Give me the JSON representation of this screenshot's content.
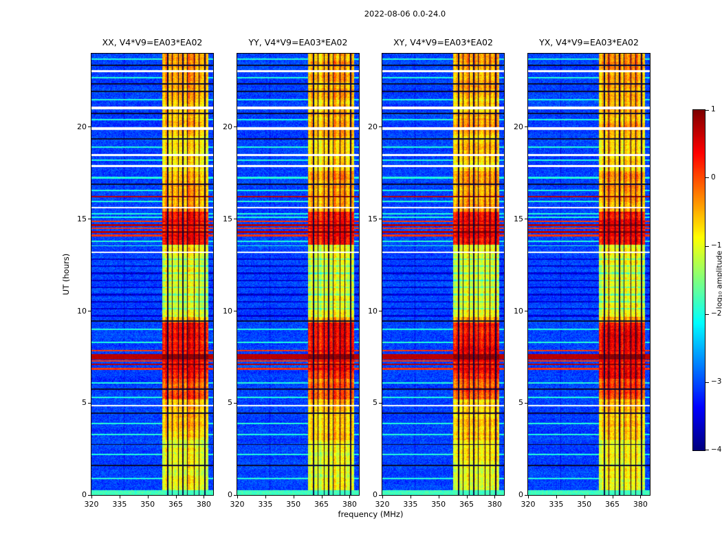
{
  "figure": {
    "title": "2022-08-06 0.0-24.0",
    "xlabel": "frequency (MHz)",
    "ylabel": "UT (hours)",
    "colorbar_label": "log₁₀ amplitude",
    "background_color": "#ffffff"
  },
  "chart_data": {
    "type": "heatmap",
    "title": "2022-08-06 0.0-24.0",
    "xlabel": "frequency (MHz)",
    "ylabel": "UT (hours)",
    "xlim": [
      320,
      385
    ],
    "ylim": [
      0,
      24
    ],
    "xticks": [
      320,
      335,
      350,
      365,
      380
    ],
    "yticks": [
      0,
      5,
      10,
      15,
      20
    ],
    "colormap": "jet",
    "colorbar": {
      "label": "log₁₀ amplitude",
      "ticks": [
        1,
        0,
        -1,
        -2,
        -3,
        -4
      ],
      "vmin": -4,
      "vmax": 1,
      "position": "right"
    },
    "panels": [
      {
        "label": "XX, V4*V9=EA03*EA02"
      },
      {
        "label": "YY, V4*V9=EA03*EA02"
      },
      {
        "label": "XY, V4*V9=EA03*EA02"
      },
      {
        "label": "YX, V4*V9=EA03*EA02"
      }
    ],
    "features": {
      "background_level": -3.05,
      "low_freq_faint_line_mhz": 337.5,
      "rfi_band": {
        "freq_start": 358.0,
        "freq_end": 382.5,
        "base_level": -1.55,
        "dark_lines_mhz": [
          360.8,
          363.2,
          366.5,
          368.9,
          371.2,
          374.8,
          377.5,
          380.6
        ]
      },
      "active_periods": [
        [
          0,
          3,
          0.35
        ],
        [
          3,
          5.2,
          0.5
        ],
        [
          5.2,
          6.3,
          0.8
        ],
        [
          6.3,
          9.4,
          1.0
        ],
        [
          9.4,
          9.8,
          0.55
        ],
        [
          9.8,
          13.6,
          0.3
        ],
        [
          13.6,
          15.4,
          1.0
        ],
        [
          15.4,
          17.6,
          0.6
        ],
        [
          17.6,
          19.5,
          0.45
        ],
        [
          19.5,
          21.5,
          0.55
        ],
        [
          21.5,
          24,
          0.6
        ]
      ],
      "stripe": {
        "range": [
          9.7,
          13.5
        ],
        "period": 0.385,
        "duty": 0.22
      },
      "row_events": [
        {
          "t": 0.12,
          "h": 0.28,
          "type": "cyanfull"
        },
        {
          "t": 0.9,
          "h": 0.07,
          "type": "cyan"
        },
        {
          "t": 1.6,
          "h": 0.07,
          "type": "black"
        },
        {
          "t": 2.2,
          "h": 0.08,
          "type": "cyan"
        },
        {
          "t": 2.75,
          "h": 0.07,
          "type": "black"
        },
        {
          "t": 3.3,
          "h": 0.09,
          "type": "cyan"
        },
        {
          "t": 3.9,
          "h": 0.07,
          "type": "cyan"
        },
        {
          "t": 4.45,
          "h": 0.07,
          "type": "black"
        },
        {
          "t": 4.86,
          "h": 0.09,
          "type": "white"
        },
        {
          "t": 5.3,
          "h": 0.08,
          "type": "cyan"
        },
        {
          "t": 5.75,
          "h": 0.07,
          "type": "black"
        },
        {
          "t": 6.1,
          "h": 0.07,
          "type": "cyan"
        },
        {
          "t": 6.85,
          "h": 0.1,
          "type": "red"
        },
        {
          "t": 7.1,
          "h": 0.1,
          "type": "darkred"
        },
        {
          "t": 7.28,
          "h": 0.08,
          "type": "red"
        },
        {
          "t": 7.5,
          "h": 0.3,
          "type": "darkred"
        },
        {
          "t": 7.85,
          "h": 0.1,
          "type": "red"
        },
        {
          "t": 8.3,
          "h": 0.07,
          "type": "cyan"
        },
        {
          "t": 9.0,
          "h": 0.08,
          "type": "cyan"
        },
        {
          "t": 9.45,
          "h": 0.07,
          "type": "black"
        },
        {
          "t": 13.2,
          "h": 0.09,
          "type": "white"
        },
        {
          "t": 13.55,
          "h": 0.07,
          "type": "cyan"
        },
        {
          "t": 13.8,
          "h": 0.08,
          "type": "cyan"
        },
        {
          "t": 14.1,
          "h": 0.1,
          "type": "red"
        },
        {
          "t": 14.3,
          "h": 0.14,
          "type": "darkred"
        },
        {
          "t": 14.5,
          "h": 0.08,
          "type": "red"
        },
        {
          "t": 14.68,
          "h": 0.13,
          "type": "darkred"
        },
        {
          "t": 14.88,
          "h": 0.1,
          "type": "red"
        },
        {
          "t": 15.1,
          "h": 0.07,
          "type": "cyan"
        },
        {
          "t": 15.3,
          "h": 0.07,
          "type": "cyan"
        },
        {
          "t": 15.62,
          "h": 0.09,
          "type": "white"
        },
        {
          "t": 15.95,
          "h": 0.07,
          "type": "cyan"
        },
        {
          "t": 16.22,
          "h": 0.1,
          "type": "darkred"
        },
        {
          "t": 16.55,
          "h": 0.07,
          "type": "cyan"
        },
        {
          "t": 16.9,
          "h": 0.07,
          "type": "black"
        },
        {
          "t": 17.25,
          "h": 0.08,
          "type": "cyan"
        },
        {
          "t": 17.88,
          "h": 0.1,
          "type": "white"
        },
        {
          "t": 18.2,
          "h": 0.07,
          "type": "cyan"
        },
        {
          "t": 18.48,
          "h": 0.12,
          "type": "white"
        },
        {
          "t": 18.9,
          "h": 0.07,
          "type": "cyan"
        },
        {
          "t": 19.35,
          "h": 0.07,
          "type": "black"
        },
        {
          "t": 19.92,
          "h": 0.16,
          "type": "white"
        },
        {
          "t": 20.4,
          "h": 0.07,
          "type": "cyan"
        },
        {
          "t": 20.75,
          "h": 0.07,
          "type": "black"
        },
        {
          "t": 21.05,
          "h": 0.12,
          "type": "white"
        },
        {
          "t": 21.5,
          "h": 0.07,
          "type": "cyan"
        },
        {
          "t": 21.95,
          "h": 0.07,
          "type": "black"
        },
        {
          "t": 22.35,
          "h": 0.09,
          "type": "black"
        },
        {
          "t": 22.7,
          "h": 0.07,
          "type": "cyan"
        },
        {
          "t": 23.05,
          "h": 0.09,
          "type": "white"
        },
        {
          "t": 23.35,
          "h": 0.08,
          "type": "black"
        },
        {
          "t": 23.7,
          "h": 0.06,
          "type": "cyan"
        }
      ]
    }
  }
}
